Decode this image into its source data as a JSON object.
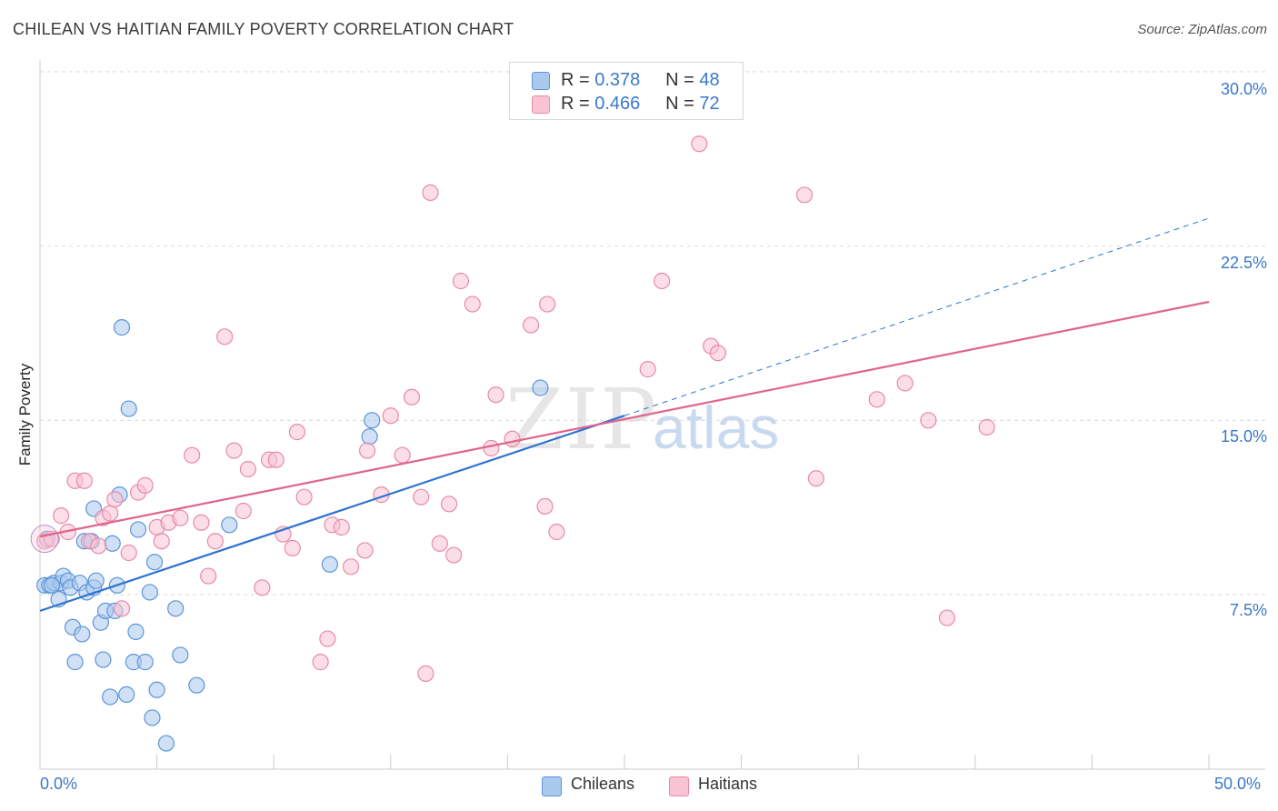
{
  "title": "CHILEAN VS HAITIAN FAMILY POVERTY CORRELATION CHART",
  "source": "Source: ZipAtlas.com",
  "watermark": {
    "part1": "ZIP",
    "part2": "atlas"
  },
  "colors": {
    "chileans_fill": "#a9c9ef",
    "chileans_stroke": "#5b95d8",
    "chileans_line": "#2f72d0",
    "haitians_fill": "#f8c3d3",
    "haitians_stroke": "#e88aa8",
    "haitians_line": "#e0648c",
    "tick_label": "#3a78c8",
    "grid": "#d9d9d9"
  },
  "legend": {
    "rows": [
      {
        "r_label": "R =",
        "r_value": "0.378",
        "n_label": "N =",
        "n_value": "48"
      },
      {
        "r_label": "R =",
        "r_value": "0.466",
        "n_label": "N =",
        "n_value": "72"
      }
    ]
  },
  "bottom_legend": {
    "chileans": "Chileans",
    "haitians": "Haitians"
  },
  "chart_data": {
    "type": "scatter",
    "title": "CHILEAN VS HAITIAN FAMILY POVERTY CORRELATION CHART",
    "xlabel": "",
    "ylabel": "Family Poverty",
    "xlim": [
      0,
      50
    ],
    "ylim": [
      0,
      31
    ],
    "x_tick_labels": {
      "min": "0.0%",
      "max": "50.0%"
    },
    "y_ticks": [
      7.5,
      15.0,
      22.5,
      30.0
    ],
    "y_tick_labels": [
      "7.5%",
      "15.0%",
      "22.5%",
      "30.0%"
    ],
    "grid": true,
    "legend_position": "top-center",
    "series": [
      {
        "name": "Chileans",
        "points": [
          [
            0.2,
            7.9
          ],
          [
            0.4,
            7.9
          ],
          [
            0.6,
            8.0
          ],
          [
            0.8,
            7.3
          ],
          [
            0.9,
            8.0
          ],
          [
            1.0,
            8.3
          ],
          [
            1.2,
            8.1
          ],
          [
            1.3,
            7.8
          ],
          [
            1.4,
            6.1
          ],
          [
            1.5,
            4.6
          ],
          [
            1.7,
            8.0
          ],
          [
            1.8,
            5.8
          ],
          [
            1.9,
            9.8
          ],
          [
            2.0,
            7.6
          ],
          [
            2.2,
            9.8
          ],
          [
            2.3,
            7.8
          ],
          [
            2.3,
            11.2
          ],
          [
            2.4,
            8.1
          ],
          [
            2.6,
            6.3
          ],
          [
            2.7,
            4.7
          ],
          [
            2.8,
            6.8
          ],
          [
            3.0,
            3.1
          ],
          [
            3.1,
            9.7
          ],
          [
            3.2,
            6.8
          ],
          [
            3.3,
            7.9
          ],
          [
            3.4,
            11.8
          ],
          [
            3.5,
            19.0
          ],
          [
            3.7,
            3.2
          ],
          [
            3.8,
            15.5
          ],
          [
            4.0,
            4.6
          ],
          [
            4.1,
            5.9
          ],
          [
            4.2,
            10.3
          ],
          [
            4.5,
            4.6
          ],
          [
            4.7,
            7.6
          ],
          [
            4.8,
            2.2
          ],
          [
            4.9,
            8.9
          ],
          [
            5.0,
            3.4
          ],
          [
            5.4,
            1.1
          ],
          [
            5.8,
            6.9
          ],
          [
            6.0,
            4.9
          ],
          [
            6.7,
            3.6
          ],
          [
            8.1,
            10.5
          ],
          [
            12.4,
            8.8
          ],
          [
            14.1,
            14.3
          ],
          [
            14.2,
            15.0
          ],
          [
            21.4,
            16.4
          ],
          [
            0.3,
            9.9
          ],
          [
            0.5,
            7.9
          ]
        ]
      },
      {
        "name": "Haitians",
        "points": [
          [
            0.2,
            9.8
          ],
          [
            0.5,
            9.9
          ],
          [
            0.9,
            10.9
          ],
          [
            1.2,
            10.2
          ],
          [
            1.5,
            12.4
          ],
          [
            1.9,
            12.4
          ],
          [
            2.1,
            9.8
          ],
          [
            2.5,
            9.6
          ],
          [
            2.7,
            10.8
          ],
          [
            3.0,
            11.0
          ],
          [
            3.2,
            11.6
          ],
          [
            3.5,
            6.9
          ],
          [
            3.8,
            9.3
          ],
          [
            4.2,
            11.9
          ],
          [
            4.5,
            12.2
          ],
          [
            5.0,
            10.4
          ],
          [
            5.2,
            9.8
          ],
          [
            5.5,
            10.6
          ],
          [
            6.0,
            10.8
          ],
          [
            6.5,
            13.5
          ],
          [
            6.9,
            10.6
          ],
          [
            7.2,
            8.3
          ],
          [
            7.5,
            9.8
          ],
          [
            7.9,
            18.6
          ],
          [
            8.3,
            13.7
          ],
          [
            8.7,
            11.1
          ],
          [
            8.9,
            12.9
          ],
          [
            9.5,
            7.8
          ],
          [
            9.8,
            13.3
          ],
          [
            10.1,
            13.3
          ],
          [
            10.4,
            10.1
          ],
          [
            10.8,
            9.5
          ],
          [
            11.0,
            14.5
          ],
          [
            11.3,
            11.7
          ],
          [
            12.0,
            4.6
          ],
          [
            12.3,
            5.6
          ],
          [
            12.5,
            10.5
          ],
          [
            12.9,
            10.4
          ],
          [
            13.3,
            8.7
          ],
          [
            13.9,
            9.4
          ],
          [
            14.0,
            13.7
          ],
          [
            14.6,
            11.8
          ],
          [
            15.0,
            15.2
          ],
          [
            15.5,
            13.5
          ],
          [
            15.9,
            16.0
          ],
          [
            16.3,
            11.7
          ],
          [
            16.5,
            4.1
          ],
          [
            16.7,
            24.8
          ],
          [
            17.1,
            9.7
          ],
          [
            17.5,
            11.4
          ],
          [
            17.7,
            9.2
          ],
          [
            18.0,
            21.0
          ],
          [
            18.5,
            20.0
          ],
          [
            19.3,
            13.8
          ],
          [
            19.5,
            16.1
          ],
          [
            20.2,
            14.2
          ],
          [
            21.0,
            19.1
          ],
          [
            21.6,
            11.3
          ],
          [
            21.7,
            20.0
          ],
          [
            22.1,
            10.2
          ],
          [
            26.0,
            17.2
          ],
          [
            26.6,
            21.0
          ],
          [
            28.2,
            26.9
          ],
          [
            28.7,
            18.2
          ],
          [
            29.0,
            17.9
          ],
          [
            32.7,
            24.7
          ],
          [
            33.2,
            12.5
          ],
          [
            35.8,
            15.9
          ],
          [
            37.0,
            16.6
          ],
          [
            38.0,
            15.0
          ],
          [
            38.8,
            6.5
          ],
          [
            40.5,
            14.7
          ]
        ]
      }
    ],
    "trend_lines": [
      {
        "series": "Chileans",
        "x": [
          0,
          25
        ],
        "y": [
          6.8,
          15.2
        ],
        "extrapolated_x": [
          25,
          50
        ],
        "extrapolated_y": [
          15.2,
          23.7
        ]
      },
      {
        "series": "Haitians",
        "x": [
          0,
          50
        ],
        "y": [
          10.0,
          20.1
        ]
      }
    ]
  }
}
